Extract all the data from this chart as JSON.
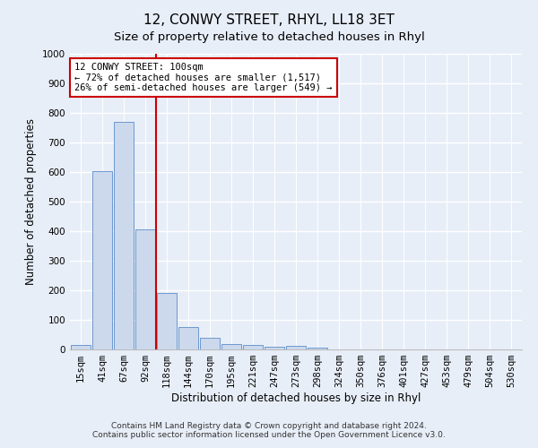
{
  "title": "12, CONWY STREET, RHYL, LL18 3ET",
  "subtitle": "Size of property relative to detached houses in Rhyl",
  "xlabel": "Distribution of detached houses by size in Rhyl",
  "ylabel": "Number of detached properties",
  "categories": [
    "15sqm",
    "41sqm",
    "67sqm",
    "92sqm",
    "118sqm",
    "144sqm",
    "170sqm",
    "195sqm",
    "221sqm",
    "247sqm",
    "273sqm",
    "298sqm",
    "324sqm",
    "350sqm",
    "376sqm",
    "401sqm",
    "427sqm",
    "453sqm",
    "479sqm",
    "504sqm",
    "530sqm"
  ],
  "values": [
    15,
    602,
    770,
    405,
    190,
    77,
    38,
    18,
    16,
    10,
    13,
    7,
    0,
    0,
    0,
    0,
    0,
    0,
    0,
    0,
    0
  ],
  "bar_color": "#ccd9ec",
  "bar_edge_color": "#5b8cc8",
  "vline_color": "#cc0000",
  "annotation_text": "12 CONWY STREET: 100sqm\n← 72% of detached houses are smaller (1,517)\n26% of semi-detached houses are larger (549) →",
  "annotation_box_color": "#cc0000",
  "ylim": [
    0,
    1000
  ],
  "yticks": [
    0,
    100,
    200,
    300,
    400,
    500,
    600,
    700,
    800,
    900,
    1000
  ],
  "footer": "Contains HM Land Registry data © Crown copyright and database right 2024.\nContains public sector information licensed under the Open Government Licence v3.0.",
  "title_fontsize": 11,
  "subtitle_fontsize": 9.5,
  "axis_label_fontsize": 8.5,
  "tick_fontsize": 7.5,
  "footer_fontsize": 6.5,
  "background_color": "#e8eef8",
  "plot_background_color": "#e8eef8"
}
